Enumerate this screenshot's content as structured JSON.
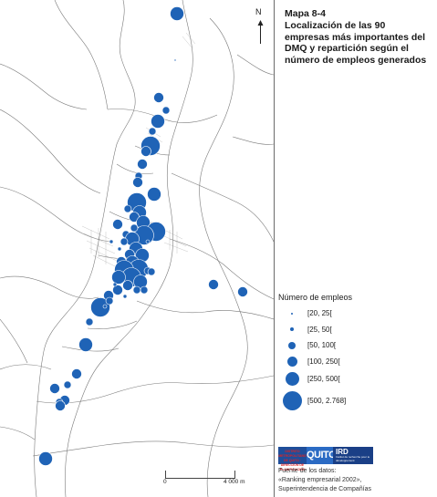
{
  "map": {
    "title_number": "Mapa  8-4",
    "title": "Localización de las 90 empresas más importantes del DMQ y repartición según el número de empleos generados",
    "north_label": "N",
    "fill_color": "#1f63b6",
    "border_color": "#7a7a7a"
  },
  "legend": {
    "heading": "Número de empleos",
    "classes": [
      {
        "label": "[20, 25[",
        "size_rank": 1
      },
      {
        "label": "[25, 50[",
        "size_rank": 2
      },
      {
        "label": "[50, 100[",
        "size_rank": 3
      },
      {
        "label": "[100, 250[",
        "size_rank": 4
      },
      {
        "label": "[250, 500[",
        "size_rank": 5
      },
      {
        "label": "[500, 2.768]",
        "size_rank": 6
      }
    ]
  },
  "scale": {
    "start": "0",
    "end": "4 000 m"
  },
  "logos": {
    "municipio_text": "DISTRITO METROPOLITANO DE QUITO · DIRECCIÓN DE PLANIFICACIÓN",
    "quito": "QUITO",
    "ird": "IRD",
    "ird_sub": "Institut de recherche pour le développement"
  },
  "source": {
    "line1": "Fuente de los datos:",
    "line2": "«Ranking empresarial 2002»,",
    "line3": "Superintendencia de Compañías"
  }
}
